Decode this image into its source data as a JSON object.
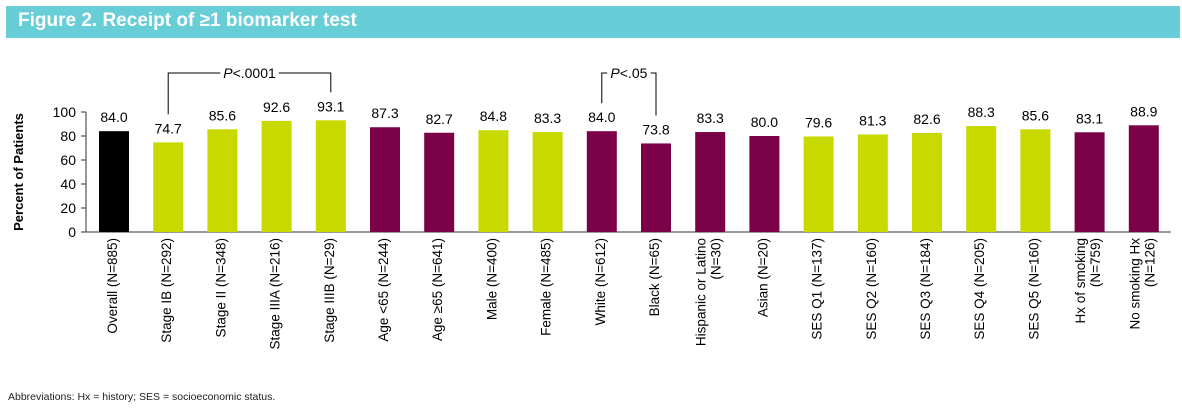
{
  "title": "Figure 2. Receipt of ≥1 biomarker test",
  "footnote": "Abbreviations: Hx = history; SES = socioeconomic status.",
  "colors": {
    "title_bg": "#67cdd6",
    "black": "#000000",
    "lime": "#c8d900",
    "maroon": "#7a0048"
  },
  "chart_data": {
    "type": "bar",
    "title": "Figure 2. Receipt of ≥1 biomarker test",
    "xlabel": "",
    "ylabel": "Percent of Patients",
    "ylim": [
      0,
      100
    ],
    "yticks": [
      0,
      20,
      40,
      60,
      80,
      100
    ],
    "grid": false,
    "categories": [
      "Overall (N=885)",
      "Stage IB (N=292)",
      "Stage II (N=348)",
      "Stage IIIA (N=216)",
      "Stage IIIB (N=29)",
      "Age <65 (N=244)",
      "Age ≥65 (N=641)",
      "Male (N=400)",
      "Female (N=485)",
      "White (N=612)",
      "Black (N=65)",
      "Hispanic or Latino|(N=30)",
      "Asian (N=20)",
      "SES Q1 (N=137)",
      "SES Q2 (N=160)",
      "SES Q3 (N=184)",
      "SES Q4 (N=205)",
      "SES Q5 (N=160)",
      "Hx of smoking|(N=759)",
      "No smoking Hx|(N=126)"
    ],
    "values": [
      84.0,
      74.7,
      85.6,
      92.6,
      93.1,
      87.3,
      82.7,
      84.8,
      83.3,
      84.0,
      73.8,
      83.3,
      80.0,
      79.6,
      81.3,
      82.6,
      88.3,
      85.6,
      83.1,
      88.9
    ],
    "value_labels": [
      "84.0",
      "74.7",
      "85.6",
      "92.6",
      "93.1",
      "87.3",
      "82.7",
      "84.8",
      "83.3",
      "84.0",
      "73.8",
      "83.3",
      "80.0",
      "79.6",
      "81.3",
      "82.6",
      "88.3",
      "85.6",
      "83.1",
      "88.9"
    ],
    "bar_colors": [
      "black",
      "lime",
      "lime",
      "lime",
      "lime",
      "maroon",
      "maroon",
      "lime",
      "lime",
      "maroon",
      "maroon",
      "maroon",
      "maroon",
      "lime",
      "lime",
      "lime",
      "lime",
      "lime",
      "maroon",
      "maroon"
    ],
    "annotations": [
      {
        "from": 1,
        "to": 4,
        "label_italic": "P",
        "label_rest": "<.0001"
      },
      {
        "from": 9,
        "to": 10,
        "label_italic": "P",
        "label_rest": "<.05"
      }
    ]
  }
}
